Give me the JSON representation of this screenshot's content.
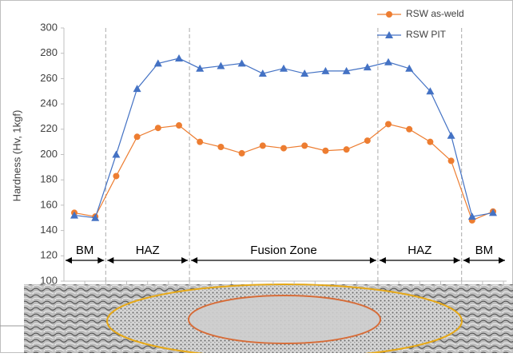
{
  "chart_data": {
    "type": "line",
    "ylabel": "Hardness (Hv, 1kgf)",
    "categories": [
      null,
      null,
      null,
      null,
      null,
      null,
      null,
      null,
      null,
      null,
      null,
      null,
      null,
      null,
      null,
      null,
      null,
      null,
      null,
      null,
      null
    ],
    "series": [
      {
        "name": "RSW as-weld",
        "color": "#ed7d31",
        "marker": "circle",
        "values": [
          154,
          151,
          183,
          214,
          221,
          223,
          210,
          206,
          201,
          207,
          205,
          207,
          203,
          204,
          211,
          224,
          220,
          210,
          195,
          148,
          155
        ]
      },
      {
        "name": "RSW PIT",
        "color": "#4472c4",
        "marker": "triangle",
        "values": [
          152,
          150,
          200,
          252,
          272,
          276,
          268,
          270,
          272,
          264,
          268,
          264,
          266,
          266,
          269,
          273,
          268,
          250,
          215,
          151,
          154
        ]
      }
    ],
    "ylim": [
      100,
      300
    ],
    "yticks": [
      100,
      120,
      140,
      160,
      180,
      200,
      220,
      240,
      260,
      280,
      300
    ],
    "legend": "upper right",
    "annotations": [
      "BM",
      "HAZ",
      "Fusion Zone",
      "HAZ",
      "BM"
    ]
  }
}
